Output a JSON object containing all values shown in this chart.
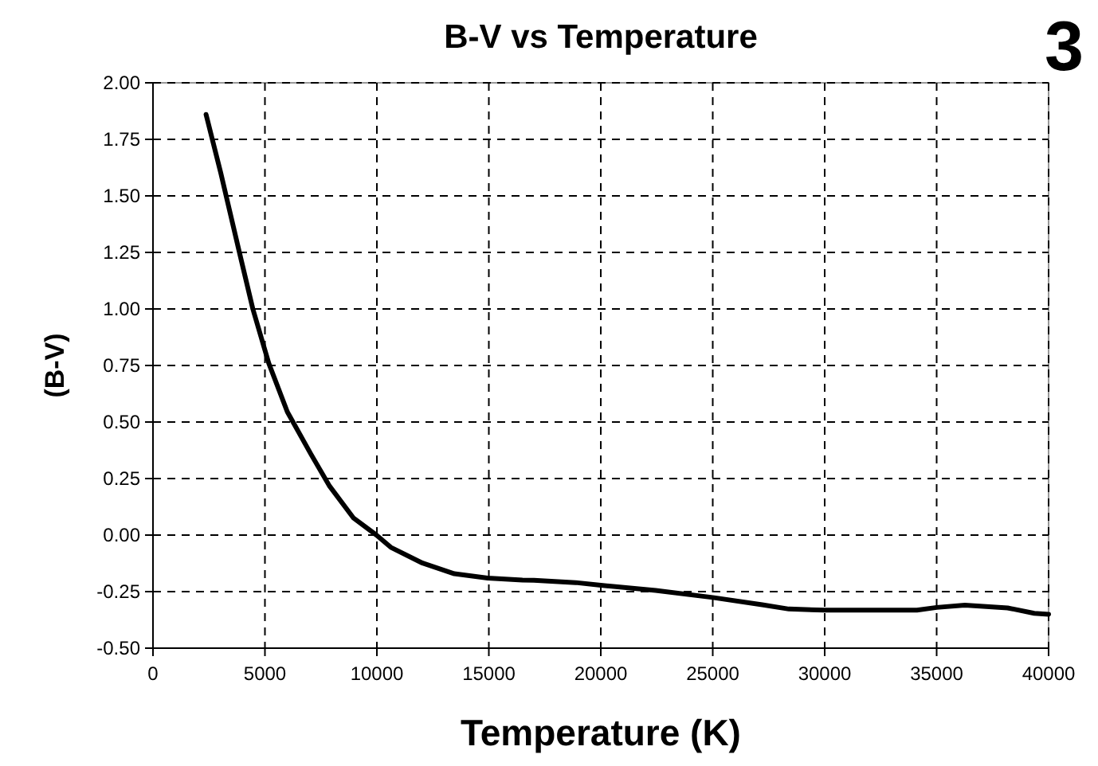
{
  "chart_data": {
    "type": "line",
    "title": "B-V vs Temperature",
    "xlabel": "Temperature (K)",
    "ylabel": "(B-V)",
    "annotations": [
      "3"
    ],
    "series": [
      {
        "color": "#000000",
        "x": [
          2370,
          3030,
          3860,
          4460,
          5170,
          6000,
          7060,
          7890,
          8960,
          9980,
          10620,
          12040,
          13460,
          14950,
          16500,
          17010,
          18880,
          20000,
          22450,
          25000,
          27210,
          28400,
          30000,
          34120,
          35000,
          36260,
          38170,
          39360,
          40000
        ],
        "values": [
          1.86,
          1.6,
          1.25,
          1.0,
          0.76,
          0.545,
          0.357,
          0.216,
          0.075,
          0.0,
          -0.054,
          -0.124,
          -0.171,
          -0.19,
          -0.199,
          -0.2,
          -0.21,
          -0.222,
          -0.245,
          -0.276,
          -0.308,
          -0.327,
          -0.332,
          -0.332,
          -0.32,
          -0.31,
          -0.322,
          -0.346,
          -0.35
        ]
      }
    ],
    "xlim": [
      0,
      40000
    ],
    "xticks": [
      0,
      5000,
      10000,
      15000,
      20000,
      25000,
      30000,
      35000,
      40000
    ],
    "ylim": [
      -0.5,
      2
    ],
    "yticks": [
      {
        "value": -0.5,
        "label": "-0.50"
      },
      {
        "value": -0.25,
        "label": "-0.25"
      },
      {
        "value": 0,
        "label": "0.00"
      },
      {
        "value": 0.25,
        "label": "0.25"
      },
      {
        "value": 0.5,
        "label": "0.50"
      },
      {
        "value": 0.75,
        "label": "0.75"
      },
      {
        "value": 1,
        "label": "1.00"
      },
      {
        "value": 1.25,
        "label": "1.25"
      },
      {
        "value": 1.5,
        "label": "1.50"
      },
      {
        "value": 1.75,
        "label": "1.75"
      },
      {
        "value": 2,
        "label": "2.00"
      }
    ],
    "grid": true,
    "line_style": "solid",
    "marker": "none"
  }
}
